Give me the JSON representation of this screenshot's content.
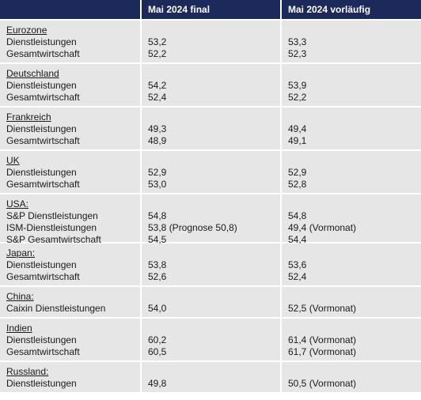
{
  "header": {
    "col1": "",
    "col2": "Mai 2024 final",
    "col3": "Mai 2024 vorläufig"
  },
  "groups": [
    {
      "title": "Eurozone",
      "rows": [
        {
          "label": "Dienstleistungen",
          "final": "53,2",
          "prelim": "53,3"
        },
        {
          "label": "Gesamtwirtschaft",
          "final": "52,2",
          "prelim": "52,3"
        }
      ]
    },
    {
      "title": "Deutschland",
      "rows": [
        {
          "label": "Dienstleistungen",
          "final": "54,2",
          "prelim": "53,9"
        },
        {
          "label": "Gesamtwirtschaft",
          "final": "52,4",
          "prelim": "52,2"
        }
      ]
    },
    {
      "title": "Frankreich",
      "rows": [
        {
          "label": "Dienstleistungen",
          "final": "49,3",
          "prelim": "49,4"
        },
        {
          "label": "Gesamtwirtschaft",
          "final": "48,9",
          "prelim": "49,1"
        }
      ]
    },
    {
      "title": "UK",
      "rows": [
        {
          "label": "Dienstleistungen",
          "final": "52,9",
          "prelim": "52,9"
        },
        {
          "label": "Gesamtwirtschaft",
          "final": "53,0",
          "prelim": "52,8"
        }
      ]
    },
    {
      "title": "USA:",
      "rows": [
        {
          "label": "S&P Dienstleistungen",
          "final": "54,8",
          "prelim": "54,8"
        },
        {
          "label": "ISM-Dienstleistungen",
          "final": "53,8 (Prognose 50,8)",
          "prelim": "49,4 (Vormonat)"
        },
        {
          "label": "S&P Gesamtwirtschaft",
          "final": "54,5",
          "prelim": "54,4"
        }
      ]
    },
    {
      "title": "Japan:",
      "rows": [
        {
          "label": "Dienstleistungen",
          "final": "53,8",
          "prelim": "53,6"
        },
        {
          "label": "Gesamtwirtschaft",
          "final": "52,6",
          "prelim": "52,4"
        }
      ]
    },
    {
      "title": "China:",
      "rows": [
        {
          "label": "Caixin Dienstleistungen",
          "final": "54,0",
          "prelim": "52,5 (Vormonat)"
        }
      ]
    },
    {
      "title": "Indien",
      "rows": [
        {
          "label": "Dienstleistungen",
          "final": "60,2",
          "prelim": "61,4 (Vormonat)"
        },
        {
          "label": "Gesamtwirtschaft",
          "final": "60,5",
          "prelim": "61,7 (Vormonat)"
        }
      ]
    },
    {
      "title": "Russland:",
      "rows": [
        {
          "label": "Dienstleistungen",
          "final": "49,8",
          "prelim": "50,5 (Vormonat)"
        }
      ]
    }
  ],
  "colors": {
    "header_bg": "#1b2a5a",
    "row_bg": "#e6e6e6",
    "header_text": "#ffffff"
  }
}
